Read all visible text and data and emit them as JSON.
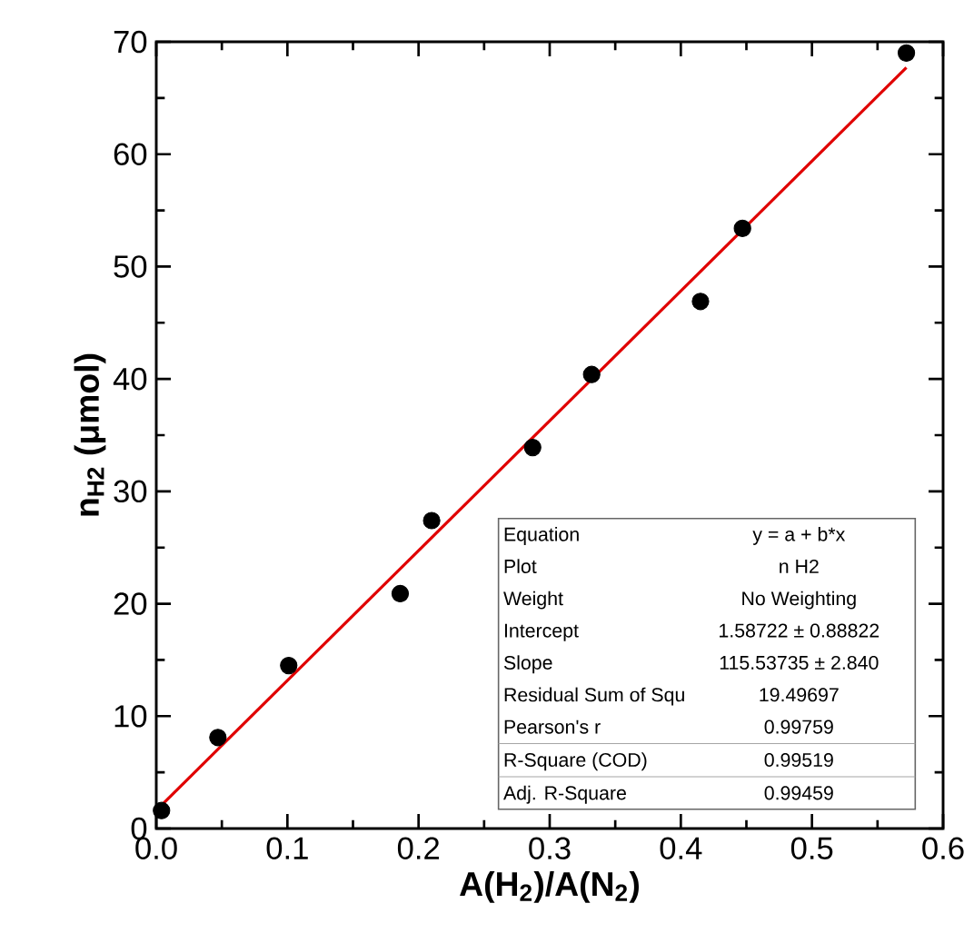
{
  "chart_data": {
    "type": "scatter",
    "xlabel": "A(H$_{2}$)/A(N$_{2}$)",
    "ylabel": "n$_{H2}$ (μmol)",
    "xlim": [
      0,
      0.6
    ],
    "ylim": [
      0,
      70
    ],
    "xticks": [
      {
        "value": 0,
        "label": "0.0"
      },
      {
        "value": 0.1,
        "label": "0.1"
      },
      {
        "value": 0.2,
        "label": "0.2"
      },
      {
        "value": 0.3,
        "label": "0.3"
      },
      {
        "value": 0.4,
        "label": "0.4"
      },
      {
        "value": 0.5,
        "label": "0.5"
      },
      {
        "value": 0.6,
        "label": "0.6"
      }
    ],
    "yticks": [
      0,
      10,
      20,
      30,
      40,
      50,
      60,
      70
    ],
    "series": [
      {
        "marker": "circle",
        "color": "#000000",
        "x": [
          0.004,
          0.047,
          0.101,
          0.186,
          0.21,
          0.287,
          0.332,
          0.415,
          0.447,
          0.572
        ],
        "values": [
          1.6,
          8.1,
          14.5,
          20.9,
          27.4,
          33.9,
          40.4,
          46.9,
          53.4,
          69.0
        ]
      },
      {
        "type": "line",
        "color": "#e00000",
        "line_style": "solid",
        "x": [
          0.005,
          0.572
        ],
        "values": [
          2.2,
          67.7
        ]
      }
    ],
    "annotations": [
      "Equation",
      "y = a + b*x",
      "Plot",
      "n H2",
      "Weight",
      "No Weighting",
      "Intercept",
      "1.58722 ± 0.88822",
      "Slope",
      "115.53735 ± 2.840",
      "Residual Sum of Squ",
      "19.49697",
      "Pearson's r",
      "0.99759",
      "R-Square (COD)",
      "0.99519",
      "Adj. R-Square",
      "0.99459"
    ]
  }
}
